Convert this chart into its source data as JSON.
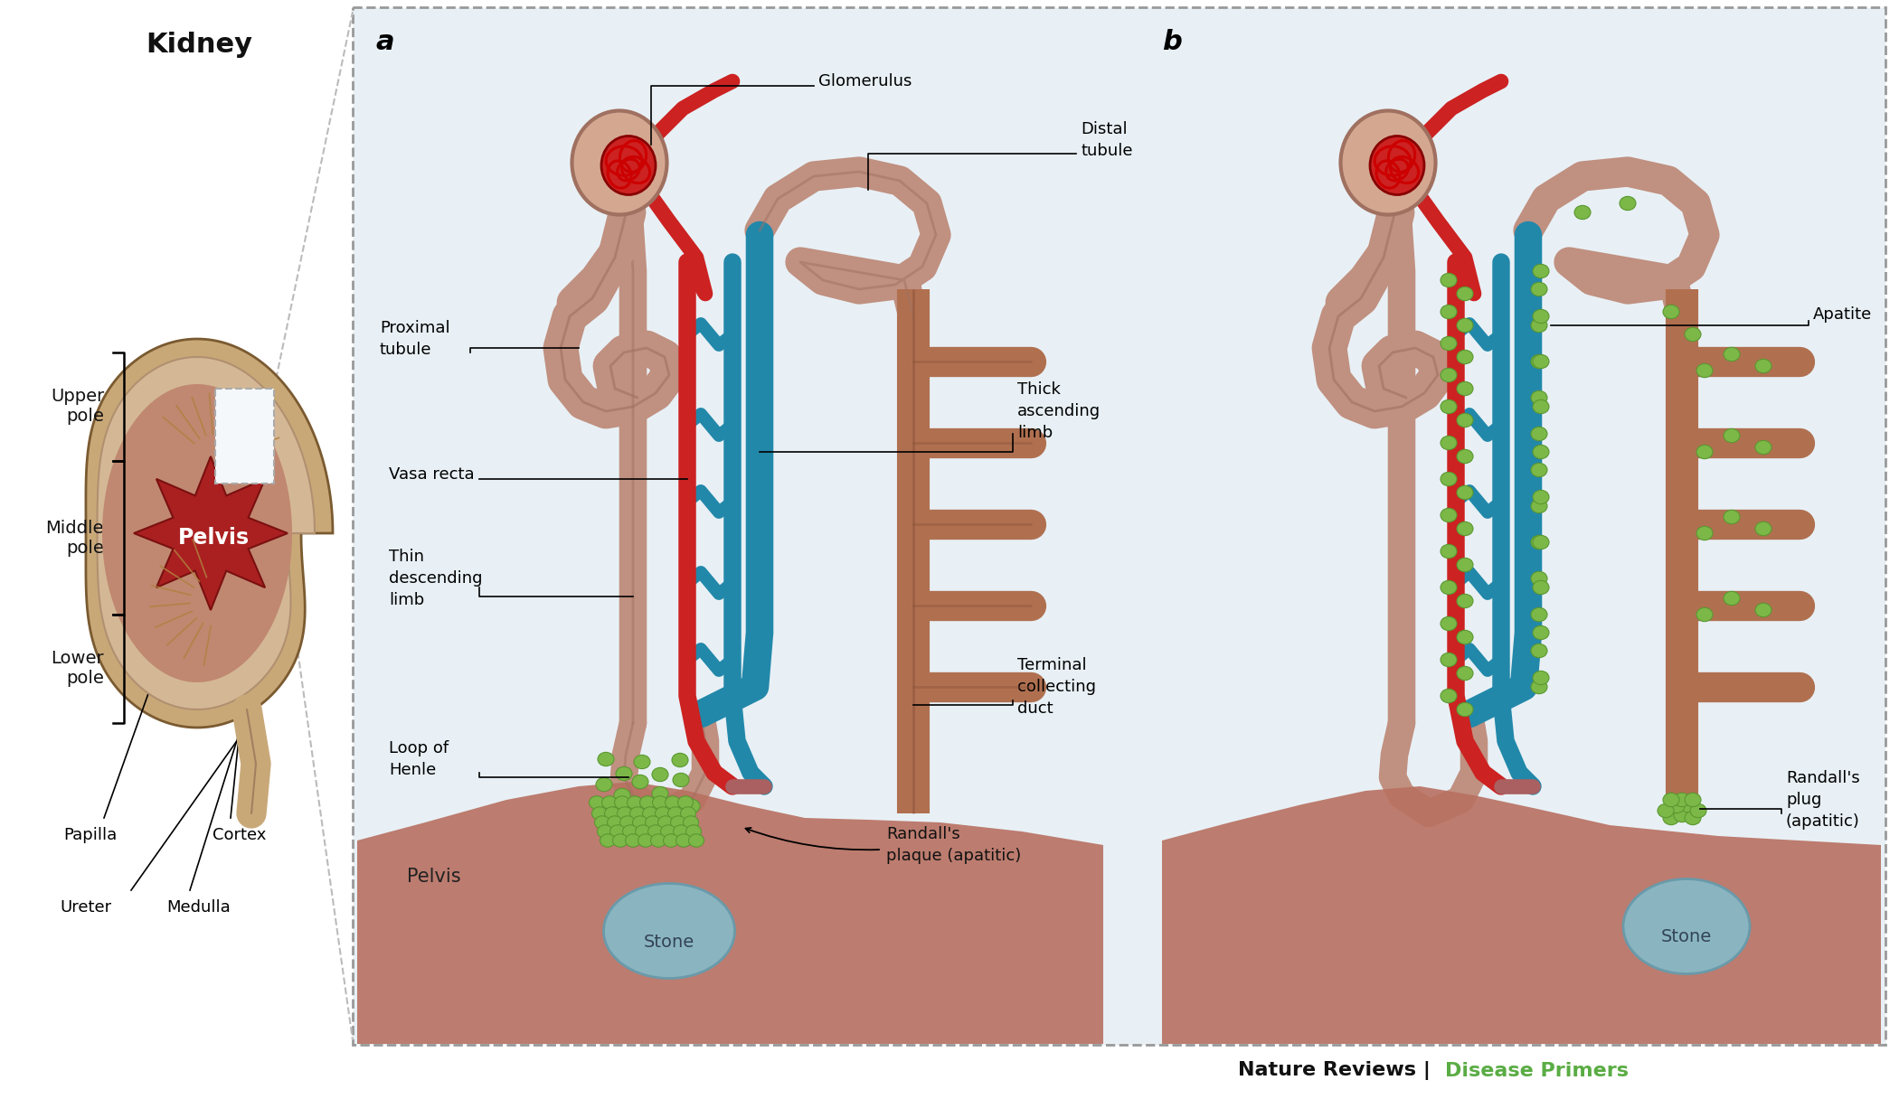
{
  "bg_color": "#ffffff",
  "panel_bg": "#e8f0f5",
  "kidney_outer": "#c9a878",
  "kidney_cortex": "#d4b896",
  "kidney_medulla": "#c08870",
  "kidney_pelvis": "#aa2020",
  "pelvis_label_color": "#ffffff",
  "red_vessel": "#cc2222",
  "blue_vessel": "#2288aa",
  "nephron_tube": "#c09080",
  "nephron_outline": "#a07060",
  "green_dot": "#7cb848",
  "green_dot_edge": "#5a9830",
  "stone_color": "#8ab5c0",
  "stone_edge": "#6a9aaa",
  "pelvis_floor": "#b87060",
  "label_color": "#111111",
  "footer_black": "#111111",
  "footer_green": "#5aac44",
  "ann_kidney_title": "Kidney",
  "ann_upper_pole": "Upper\npole",
  "ann_middle_pole": "Middle\npole",
  "ann_lower_pole": "Lower\npole",
  "ann_pelvis": "Pelvis",
  "ann_papilla": "Papilla",
  "ann_cortex": "Cortex",
  "ann_ureter": "Ureter",
  "ann_medulla": "Medulla",
  "ann_panel_a": "a",
  "ann_panel_b": "b",
  "ann_glomerulus": "Glomerulus",
  "ann_distal_tubule": "Distal\ntubule",
  "ann_proximal_tubule": "Proximal\ntubule",
  "ann_vasa_recta": "Vasa recta",
  "ann_thick_ascending": "Thick\nascending\nlimb",
  "ann_thin_descending": "Thin\ndescending\nlimb",
  "ann_loop_henle": "Loop of\nHenle",
  "ann_terminal_collecting": "Terminal\ncollecting\nduct",
  "ann_pelvis_label": "Pelvis",
  "ann_stone_a": "Stone",
  "ann_randalls_plaque": "Randall's\nplaque (apatitic)",
  "ann_apatite": "Apatite",
  "ann_randalls_plug": "Randall's\nplug\n(apatitic)",
  "ann_stone_b": "Stone",
  "ann_footer_left": "Nature Reviews",
  "ann_footer_right": "Disease Primers"
}
